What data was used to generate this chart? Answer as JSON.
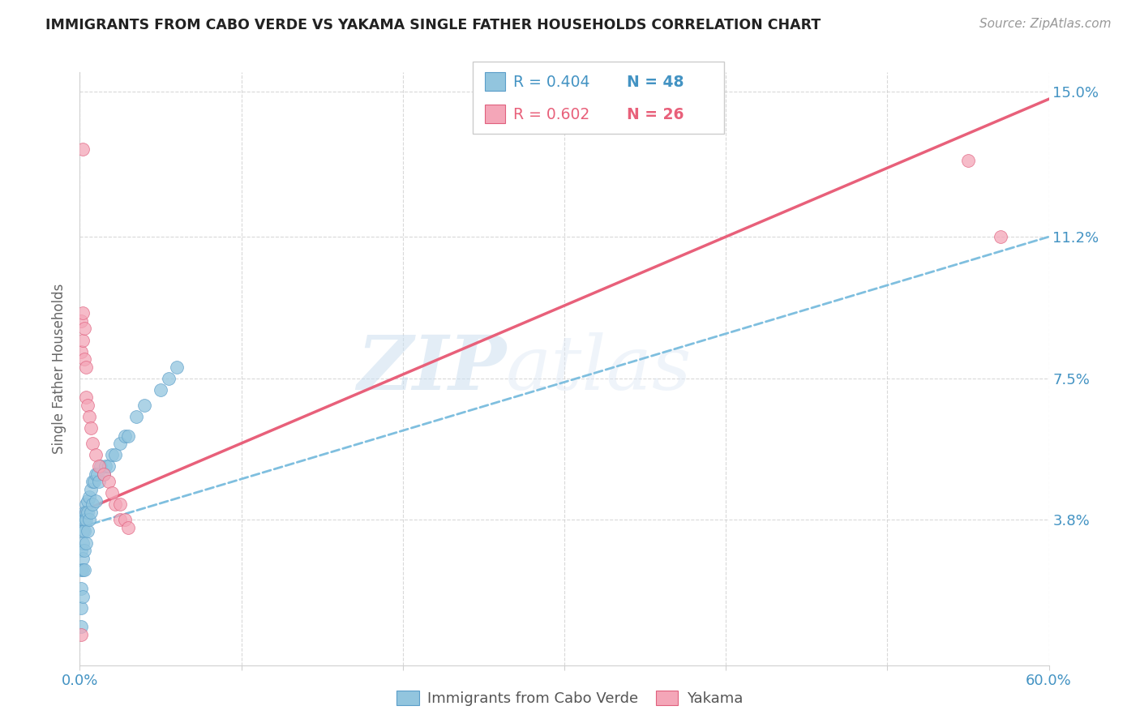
{
  "title": "IMMIGRANTS FROM CABO VERDE VS YAKAMA SINGLE FATHER HOUSEHOLDS CORRELATION CHART",
  "source": "Source: ZipAtlas.com",
  "ylabel": "Single Father Households",
  "watermark_zip": "ZIP",
  "watermark_atlas": "atlas",
  "xlim": [
    0.0,
    0.6
  ],
  "ylim": [
    0.0,
    0.155
  ],
  "xticks": [
    0.0,
    0.1,
    0.2,
    0.3,
    0.4,
    0.5,
    0.6
  ],
  "xtick_labels": [
    "0.0%",
    "",
    "",
    "",
    "",
    "",
    "60.0%"
  ],
  "ytick_labels": [
    "3.8%",
    "7.5%",
    "11.2%",
    "15.0%"
  ],
  "ytick_values": [
    0.038,
    0.075,
    0.112,
    0.15
  ],
  "legend1_r": "R = 0.404",
  "legend1_n": "N = 48",
  "legend2_r": "R = 0.602",
  "legend2_n": "N = 26",
  "blue_color": "#92c5de",
  "pink_color": "#f4a6b8",
  "blue_edge_color": "#5b9ec9",
  "pink_edge_color": "#e0607e",
  "blue_line_color": "#7fbfdf",
  "pink_line_color": "#e8607a",
  "legend_blue_color": "#4393c3",
  "legend_pink_color": "#e8607a",
  "axis_tick_color": "#4393c3",
  "title_color": "#222222",
  "grid_color": "#d0d0d0",
  "blue_line_y_start": 0.036,
  "blue_line_y_end": 0.112,
  "pink_line_y_start": 0.04,
  "pink_line_y_end": 0.148,
  "blue_scatter_x": [
    0.001,
    0.001,
    0.001,
    0.001,
    0.001,
    0.002,
    0.002,
    0.002,
    0.002,
    0.002,
    0.002,
    0.003,
    0.003,
    0.003,
    0.003,
    0.003,
    0.004,
    0.004,
    0.004,
    0.004,
    0.005,
    0.005,
    0.005,
    0.006,
    0.006,
    0.007,
    0.007,
    0.008,
    0.008,
    0.009,
    0.01,
    0.01,
    0.011,
    0.012,
    0.013,
    0.015,
    0.016,
    0.018,
    0.02,
    0.022,
    0.025,
    0.028,
    0.03,
    0.035,
    0.04,
    0.05,
    0.055,
    0.06
  ],
  "blue_scatter_y": [
    0.03,
    0.025,
    0.02,
    0.015,
    0.01,
    0.038,
    0.035,
    0.032,
    0.028,
    0.025,
    0.018,
    0.04,
    0.038,
    0.035,
    0.03,
    0.025,
    0.042,
    0.04,
    0.038,
    0.032,
    0.043,
    0.04,
    0.035,
    0.044,
    0.038,
    0.046,
    0.04,
    0.048,
    0.042,
    0.048,
    0.05,
    0.043,
    0.05,
    0.048,
    0.052,
    0.05,
    0.052,
    0.052,
    0.055,
    0.055,
    0.058,
    0.06,
    0.06,
    0.065,
    0.068,
    0.072,
    0.075,
    0.078
  ],
  "pink_scatter_x": [
    0.001,
    0.001,
    0.002,
    0.002,
    0.003,
    0.003,
    0.004,
    0.004,
    0.005,
    0.006,
    0.007,
    0.008,
    0.01,
    0.012,
    0.015,
    0.018,
    0.02,
    0.022,
    0.025,
    0.025,
    0.028,
    0.03,
    0.002,
    0.55,
    0.57,
    0.001
  ],
  "pink_scatter_y": [
    0.09,
    0.082,
    0.092,
    0.085,
    0.088,
    0.08,
    0.078,
    0.07,
    0.068,
    0.065,
    0.062,
    0.058,
    0.055,
    0.052,
    0.05,
    0.048,
    0.045,
    0.042,
    0.042,
    0.038,
    0.038,
    0.036,
    0.135,
    0.132,
    0.112,
    0.008
  ]
}
